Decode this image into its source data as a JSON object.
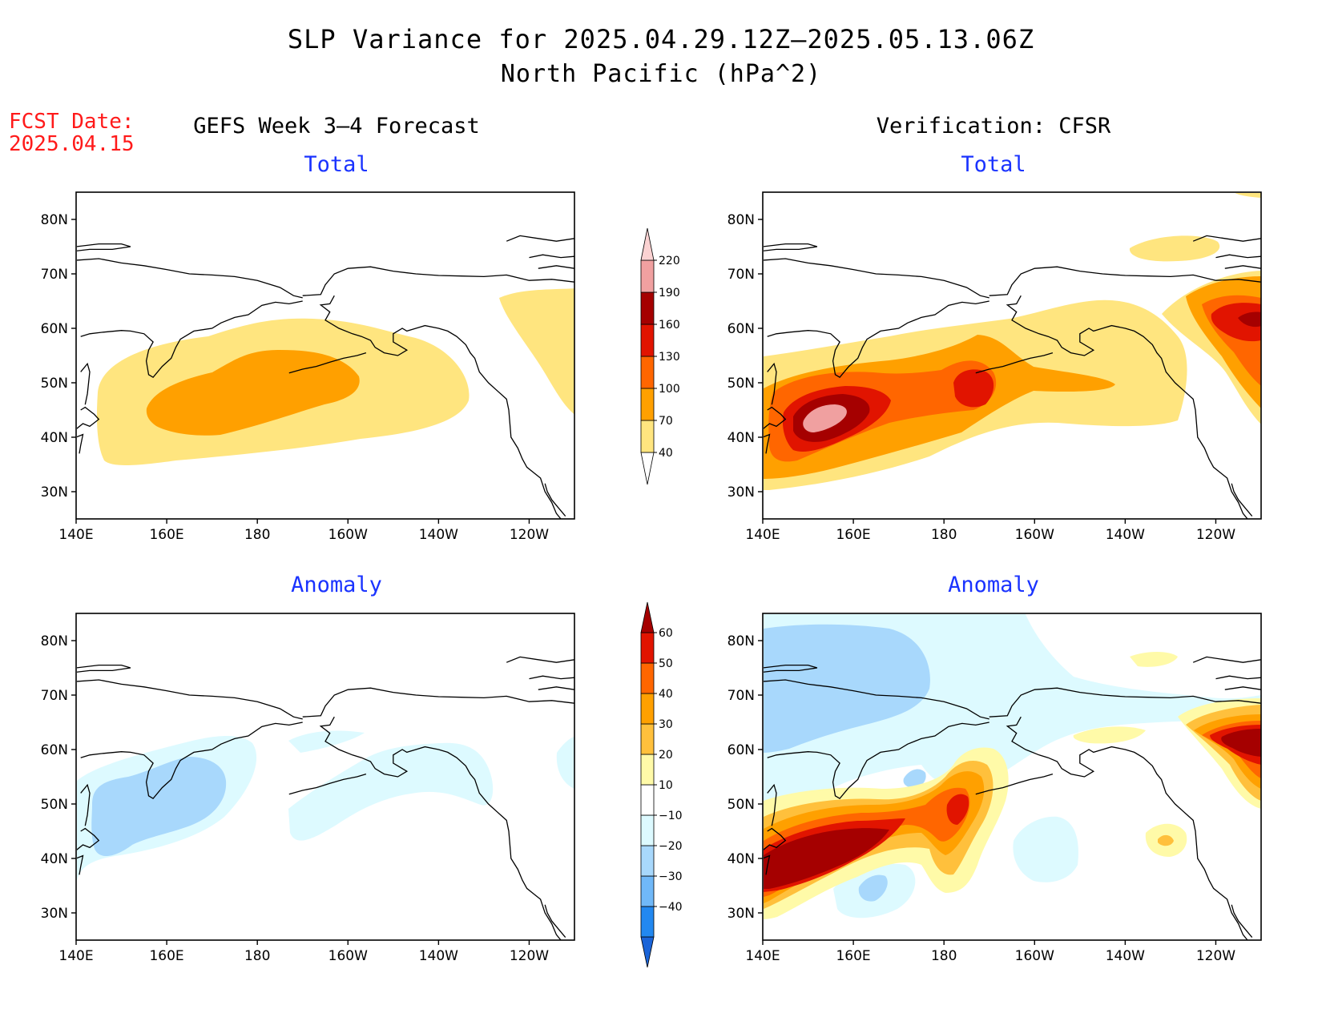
{
  "title": "SLP Variance for 2025.04.29.12Z–2025.05.13.06Z",
  "subtitle": "North Pacific (hPa^2)",
  "fcst_date": {
    "label": "FCST Date:",
    "value": "2025.04.15"
  },
  "left_header": "GEFS Week 3–4 Forecast",
  "right_header": "Verification: CFSR",
  "panel_titles": {
    "total": "Total",
    "anomaly": "Anomaly"
  },
  "lat_labels": [
    "80N",
    "70N",
    "60N",
    "50N",
    "40N",
    "30N"
  ],
  "lat_values": [
    80,
    70,
    60,
    50,
    40,
    30
  ],
  "lon_labels": [
    "140E",
    "160E",
    "180",
    "160W",
    "140W",
    "120W"
  ],
  "lon_values": [
    140,
    160,
    180,
    200,
    220,
    240
  ],
  "map_extent": {
    "lon": [
      140,
      250
    ],
    "lat": [
      25,
      85
    ]
  },
  "total_colorbar": {
    "labels": [
      "220",
      "190",
      "160",
      "130",
      "100",
      "70",
      "40"
    ],
    "colors_bottom_to_top": [
      "#ffffff",
      "#ffe57f",
      "#ffa000",
      "#ff6600",
      "#e11400",
      "#a50000",
      "#f0a0a0",
      "#fbd2d2"
    ]
  },
  "anomaly_colorbar": {
    "labels": [
      "60",
      "50",
      "40",
      "30",
      "20",
      "10",
      "−10",
      "−20",
      "−30",
      "−40"
    ],
    "colors_bottom_to_top": [
      "#1a64d8",
      "#2288f0",
      "#70b8f8",
      "#a8d8fc",
      "#ddfaff",
      "#ffffff",
      "#fffaa8",
      "#ffc03c",
      "#ffa000",
      "#ff6600",
      "#e11400",
      "#a50000"
    ]
  },
  "colors": {
    "title_red": "#ff1a1a",
    "panel_title_blue": "#1a33ff",
    "coast": "#000000"
  }
}
